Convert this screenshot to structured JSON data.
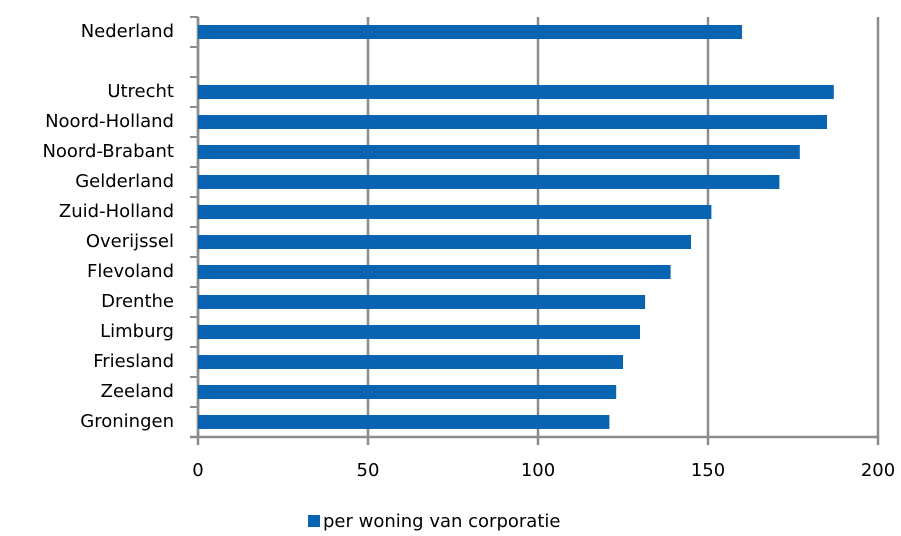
{
  "chart_data": {
    "type": "bar",
    "orientation": "horizontal",
    "categories": [
      "Nederland",
      null,
      "Utrecht",
      "Noord-Holland",
      "Noord-Brabant",
      "Gelderland",
      "Zuid-Holland",
      "Overijssel",
      "Flevoland",
      "Drenthe",
      "Limburg",
      "Friesland",
      "Zeeland",
      "Groningen"
    ],
    "series": [
      {
        "name": "per woning van corporatie",
        "color": "#0864b1",
        "values": [
          160,
          null,
          187,
          185,
          177,
          171,
          151,
          145,
          139,
          131.5,
          130,
          125,
          123,
          121
        ]
      }
    ],
    "xlim": [
      0,
      200
    ],
    "xticks": [
      0,
      50,
      100,
      150,
      200
    ],
    "grid": true,
    "legend": "bottom"
  }
}
